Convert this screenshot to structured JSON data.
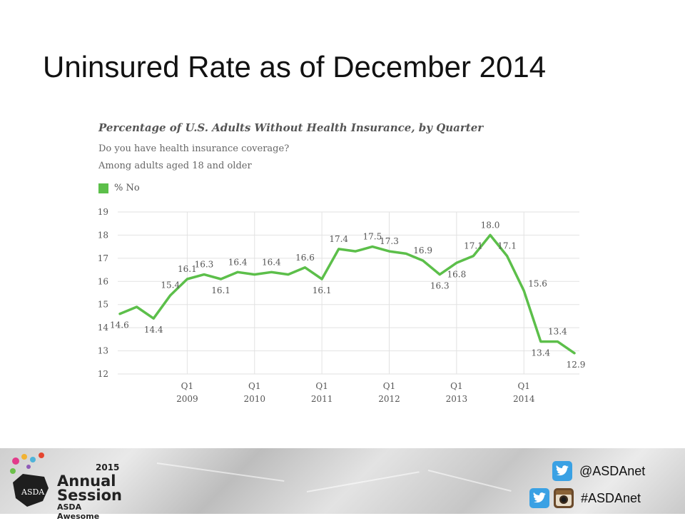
{
  "slide": {
    "title": "Uninsured Rate as of December 2014"
  },
  "chart_data": {
    "type": "line",
    "title": "Percentage of U.S. Adults Without Health Insurance, by Quarter",
    "subtitle_lines": [
      "Do you have health insurance coverage?",
      "Among adults aged 18 and older"
    ],
    "legend": [
      {
        "label": "% No",
        "color": "#5cbf4a"
      }
    ],
    "series": [
      {
        "name": "% No",
        "color": "#5cbf4a",
        "values": [
          14.6,
          14.9,
          14.4,
          15.4,
          16.1,
          16.3,
          16.1,
          16.4,
          16.3,
          16.4,
          16.3,
          16.6,
          16.1,
          17.4,
          17.3,
          17.5,
          17.3,
          17.2,
          16.9,
          16.3,
          16.8,
          17.1,
          18.0,
          17.1,
          15.6,
          13.4,
          13.4,
          12.9
        ]
      }
    ],
    "data_labels": [
      {
        "i": 0,
        "text": "14.6",
        "pos": "below"
      },
      {
        "i": 2,
        "text": "14.4",
        "pos": "below"
      },
      {
        "i": 3,
        "text": "15.4",
        "pos": "above"
      },
      {
        "i": 4,
        "text": "16.1",
        "pos": "above"
      },
      {
        "i": 5,
        "text": "16.3",
        "pos": "above"
      },
      {
        "i": 6,
        "text": "16.1",
        "pos": "below"
      },
      {
        "i": 7,
        "text": "16.4",
        "pos": "above"
      },
      {
        "i": 9,
        "text": "16.4",
        "pos": "above"
      },
      {
        "i": 11,
        "text": "16.6",
        "pos": "above"
      },
      {
        "i": 12,
        "text": "16.1",
        "pos": "below"
      },
      {
        "i": 13,
        "text": "17.4",
        "pos": "above"
      },
      {
        "i": 15,
        "text": "17.5",
        "pos": "above"
      },
      {
        "i": 16,
        "text": "17.3",
        "pos": "above"
      },
      {
        "i": 18,
        "text": "16.9",
        "pos": "above"
      },
      {
        "i": 19,
        "text": "16.3",
        "pos": "below"
      },
      {
        "i": 20,
        "text": "16.8",
        "pos": "below"
      },
      {
        "i": 21,
        "text": "17.1",
        "pos": "above"
      },
      {
        "i": 22,
        "text": "18.0",
        "pos": "above"
      },
      {
        "i": 23,
        "text": "17.1",
        "pos": "above"
      },
      {
        "i": 24,
        "text": "15.6",
        "pos": "right"
      },
      {
        "i": 25,
        "text": "13.4",
        "pos": "below"
      },
      {
        "i": 26,
        "text": "13.4",
        "pos": "above"
      },
      {
        "i": 27,
        "text": "12.9",
        "pos": "below"
      }
    ],
    "x_ticks": [
      {
        "i": 4,
        "q": "Q1",
        "year": "2009"
      },
      {
        "i": 8,
        "q": "Q1",
        "year": "2010"
      },
      {
        "i": 12,
        "q": "Q1",
        "year": "2011"
      },
      {
        "i": 16,
        "q": "Q1",
        "year": "2012"
      },
      {
        "i": 20,
        "q": "Q1",
        "year": "2013"
      },
      {
        "i": 24,
        "q": "Q1",
        "year": "2014"
      }
    ],
    "y_ticks": [
      12,
      13,
      14,
      15,
      16,
      17,
      18,
      19
    ],
    "ylim": [
      12,
      19
    ],
    "grid": true
  },
  "footer": {
    "logo": {
      "year": "2015",
      "line1": "Annual",
      "line2": "Session",
      "line3": "ASDA Awesome",
      "badge": "ASDA"
    },
    "twitter_handle": "@ASDAnet",
    "hashtag": "#ASDAnet",
    "icons": [
      "twitter-icon",
      "twitter-icon",
      "instagram-icon"
    ]
  }
}
